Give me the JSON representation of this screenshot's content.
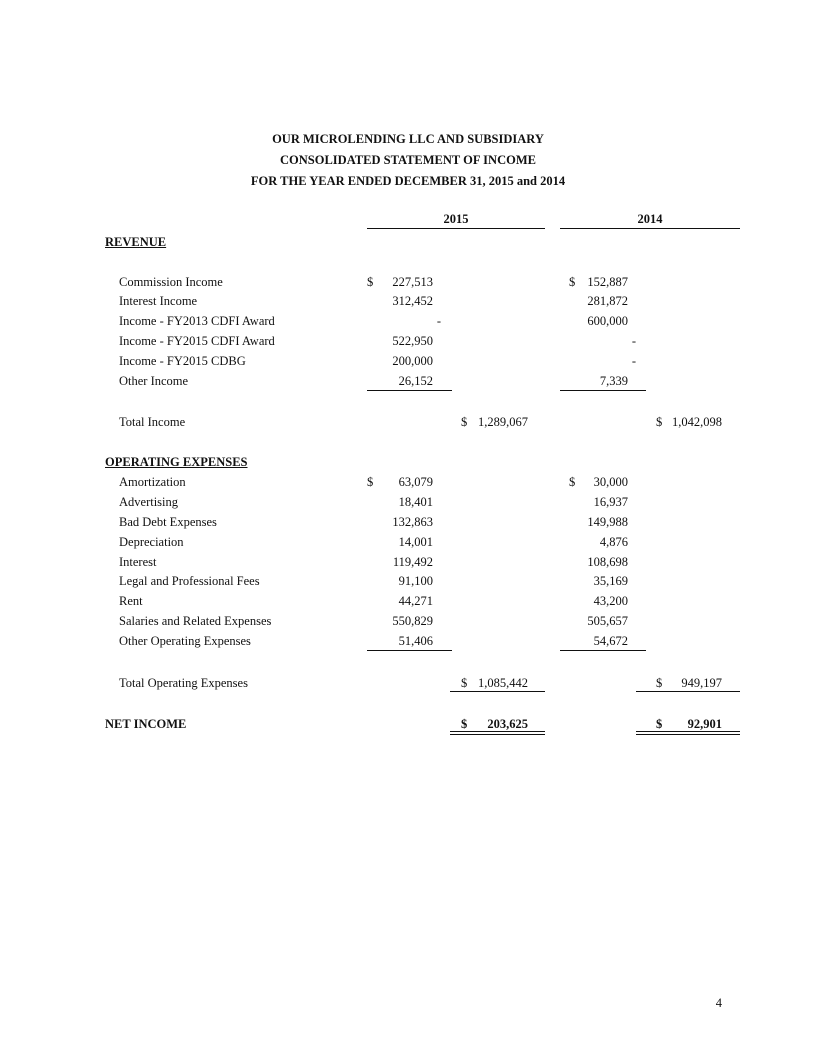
{
  "header": {
    "company": "OUR MICROLENDING LLC AND SUBSIDIARY",
    "statement": "CONSOLIDATED STATEMENT OF INCOME",
    "period": "FOR THE YEAR ENDED DECEMBER 31, 2015 and 2014"
  },
  "columns": [
    "2015",
    "2014"
  ],
  "currency_symbol": "$",
  "revenue": {
    "heading": "REVENUE",
    "items": [
      {
        "label": "Commission Income",
        "y2015": "227,513",
        "y2014": "152,887",
        "dollar": true
      },
      {
        "label": "Interest Income",
        "y2015": "312,452",
        "y2014": "281,872"
      },
      {
        "label": "Income - FY2013 CDFI Award",
        "y2015": "-",
        "y2014": "600,000"
      },
      {
        "label": "Income - FY2015 CDFI Award",
        "y2015": "522,950",
        "y2014": "-"
      },
      {
        "label": "Income - FY2015 CDBG",
        "y2015": "200,000",
        "y2014": "-"
      },
      {
        "label": "Other Income",
        "y2015": "26,152",
        "y2014": "7,339"
      }
    ],
    "total": {
      "label": "Total Income",
      "y2015": "1,289,067",
      "y2014": "1,042,098"
    }
  },
  "expenses": {
    "heading": "OPERATING EXPENSES",
    "items": [
      {
        "label": "Amortization",
        "y2015": "63,079",
        "y2014": "30,000",
        "dollar": true
      },
      {
        "label": "Advertising",
        "y2015": "18,401",
        "y2014": "16,937"
      },
      {
        "label": "Bad Debt Expenses",
        "y2015": "132,863",
        "y2014": "149,988"
      },
      {
        "label": "Depreciation",
        "y2015": "14,001",
        "y2014": "4,876"
      },
      {
        "label": "Interest",
        "y2015": "119,492",
        "y2014": "108,698"
      },
      {
        "label": "Legal and Professional Fees",
        "y2015": "91,100",
        "y2014": "35,169"
      },
      {
        "label": "Rent",
        "y2015": "44,271",
        "y2014": "43,200"
      },
      {
        "label": "Salaries and Related Expenses",
        "y2015": "550,829",
        "y2014": "505,657"
      },
      {
        "label": "Other Operating Expenses",
        "y2015": "51,406",
        "y2014": "54,672"
      }
    ],
    "total": {
      "label": "Total Operating Expenses",
      "y2015": "1,085,442",
      "y2014": "949,197"
    }
  },
  "net_income": {
    "label": "NET INCOME",
    "y2015": "203,625",
    "y2014": "92,901"
  },
  "page_number": "4"
}
